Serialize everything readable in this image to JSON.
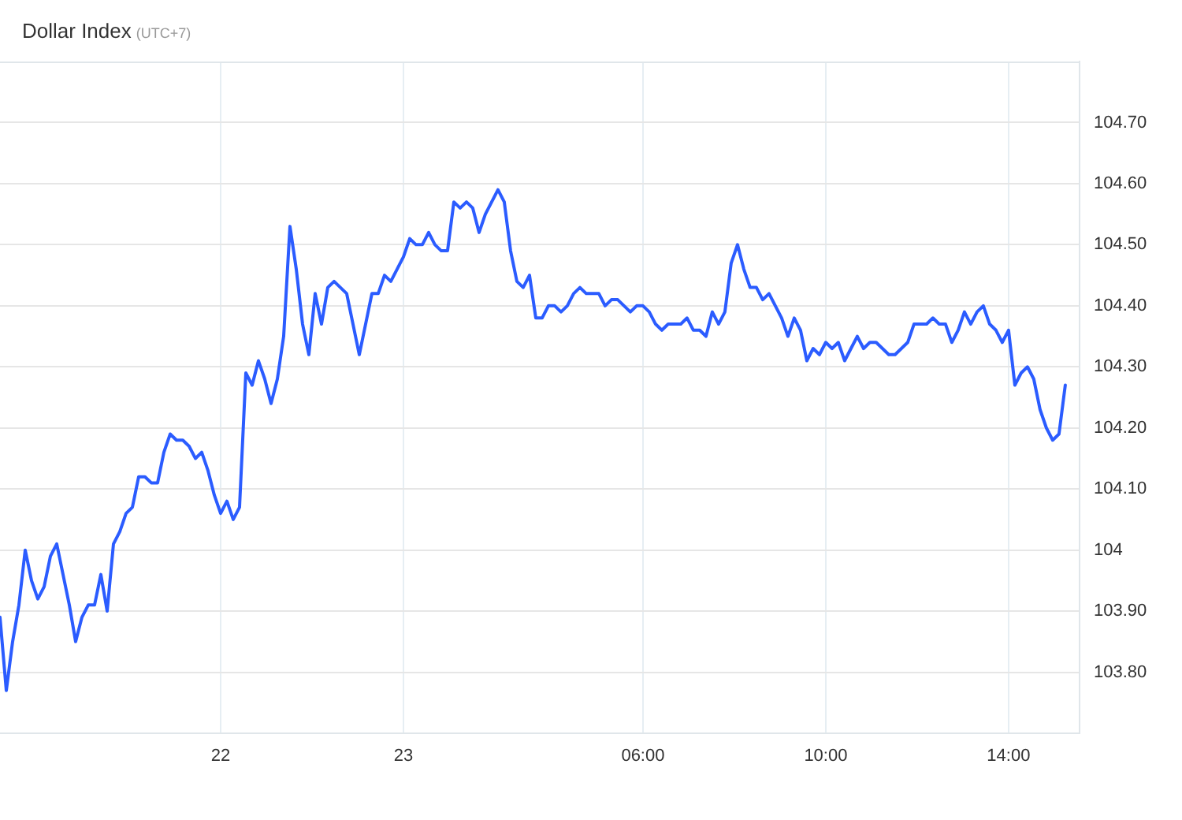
{
  "chart_data": {
    "type": "line",
    "title": "Dollar Index",
    "subtitle": "(UTC+7)",
    "categories": [
      null,
      null,
      null,
      null,
      null,
      null,
      null,
      null,
      null,
      null,
      null,
      null,
      null,
      null,
      null,
      null,
      null,
      null,
      null,
      null,
      null,
      null,
      null,
      null,
      null,
      null,
      null,
      null,
      null,
      null,
      null,
      null,
      null,
      null,
      null,
      "22",
      null,
      null,
      null,
      null,
      null,
      null,
      null,
      null,
      null,
      null,
      null,
      null,
      null,
      null,
      null,
      null,
      null,
      null,
      null,
      null,
      null,
      null,
      null,
      null,
      null,
      null,
      null,
      null,
      "23",
      null,
      null,
      null,
      null,
      null,
      null,
      null,
      null,
      null,
      null,
      null,
      null,
      null,
      null,
      null,
      null,
      null,
      null,
      null,
      null,
      null,
      null,
      null,
      null,
      null,
      null,
      null,
      null,
      null,
      null,
      null,
      null,
      null,
      null,
      null,
      null,
      null,
      "06:00",
      null,
      null,
      null,
      null,
      null,
      null,
      null,
      null,
      null,
      null,
      null,
      null,
      null,
      null,
      null,
      null,
      null,
      null,
      null,
      null,
      null,
      null,
      null,
      null,
      null,
      null,
      null,
      null,
      "10:00",
      null,
      null,
      null,
      null,
      null,
      null,
      null,
      null,
      null,
      null,
      null,
      null,
      null,
      null,
      null,
      null,
      null,
      null,
      null,
      null,
      null,
      null,
      null,
      null,
      null,
      null,
      null,
      null,
      "14:00",
      null,
      null,
      null,
      null,
      null,
      null,
      null,
      null,
      null
    ],
    "series": [
      {
        "color": "#2b5cff",
        "values": [
          103.89,
          103.77,
          103.85,
          103.91,
          104.0,
          103.95,
          103.92,
          103.94,
          103.99,
          104.01,
          103.96,
          103.91,
          103.85,
          103.89,
          103.91,
          103.91,
          103.96,
          103.9,
          104.01,
          104.03,
          104.06,
          104.07,
          104.12,
          104.12,
          104.11,
          104.11,
          104.16,
          104.19,
          104.18,
          104.18,
          104.17,
          104.15,
          104.16,
          104.13,
          104.09,
          104.06,
          104.08,
          104.05,
          104.07,
          104.29,
          104.27,
          104.31,
          104.28,
          104.24,
          104.28,
          104.35,
          104.53,
          104.46,
          104.37,
          104.32,
          104.42,
          104.37,
          104.43,
          104.44,
          104.43,
          104.42,
          104.37,
          104.32,
          104.37,
          104.42,
          104.42,
          104.45,
          104.44,
          104.46,
          104.48,
          104.51,
          104.5,
          104.5,
          104.52,
          104.5,
          104.49,
          104.49,
          104.57,
          104.56,
          104.57,
          104.56,
          104.52,
          104.55,
          104.57,
          104.59,
          104.57,
          104.49,
          104.44,
          104.43,
          104.45,
          104.38,
          104.38,
          104.4,
          104.4,
          104.39,
          104.4,
          104.42,
          104.43,
          104.42,
          104.42,
          104.42,
          104.4,
          104.41,
          104.41,
          104.4,
          104.39,
          104.4,
          104.4,
          104.39,
          104.37,
          104.36,
          104.37,
          104.37,
          104.37,
          104.38,
          104.36,
          104.36,
          104.35,
          104.39,
          104.37,
          104.39,
          104.47,
          104.5,
          104.46,
          104.43,
          104.43,
          104.41,
          104.42,
          104.4,
          104.38,
          104.35,
          104.38,
          104.36,
          104.31,
          104.33,
          104.32,
          104.34,
          104.33,
          104.34,
          104.31,
          104.33,
          104.35,
          104.33,
          104.34,
          104.34,
          104.33,
          104.32,
          104.32,
          104.33,
          104.34,
          104.37,
          104.37,
          104.37,
          104.38,
          104.37,
          104.37,
          104.34,
          104.36,
          104.39,
          104.37,
          104.39,
          104.4,
          104.37,
          104.36,
          104.34,
          104.36,
          104.27,
          104.29,
          104.3,
          104.28,
          104.23,
          104.2,
          104.18,
          104.19,
          104.27
        ]
      }
    ],
    "ylim": [
      103.7,
      104.8
    ],
    "yticks": [
      {
        "value": 103.8,
        "label": "103.80"
      },
      {
        "value": 103.9,
        "label": "103.90"
      },
      104,
      {
        "value": 104.1,
        "label": "104.10"
      },
      {
        "value": 104.2,
        "label": "104.20"
      },
      {
        "value": 104.3,
        "label": "104.30"
      },
      {
        "value": 104.4,
        "label": "104.40"
      },
      {
        "value": 104.5,
        "label": "104.50"
      },
      {
        "value": 104.6,
        "label": "104.60"
      },
      {
        "value": 104.7,
        "label": "104.70"
      }
    ],
    "grid": true,
    "legend": false,
    "marker": "none",
    "line_style": "solid"
  }
}
